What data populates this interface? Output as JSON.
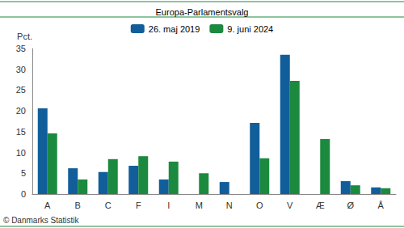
{
  "chart_data": {
    "type": "bar",
    "title": "Europa-Parlamentsvalg",
    "y_label": "Pct.",
    "annotation": "© Danmarks Statistik",
    "categories": [
      "A",
      "B",
      "C",
      "F",
      "I",
      "M",
      "N",
      "O",
      "V",
      "Æ",
      "Ø",
      "Å"
    ],
    "series": [
      {
        "name": "26. maj 2019",
        "color": "#115e9b",
        "values": [
          20.6,
          6.2,
          5.3,
          6.8,
          3.5,
          null,
          2.9,
          17.1,
          33.5,
          null,
          3.1,
          1.6
        ]
      },
      {
        "name": "9. juni 2024",
        "color": "#1b8a3e",
        "values": [
          14.6,
          3.5,
          8.4,
          9.1,
          7.8,
          5.0,
          null,
          8.6,
          27.2,
          13.2,
          2.1,
          1.4
        ]
      }
    ],
    "ylim": [
      0,
      35
    ],
    "yticks": [
      0,
      5,
      10,
      15,
      20,
      25,
      30,
      35
    ],
    "grid": false,
    "legend": "top"
  }
}
